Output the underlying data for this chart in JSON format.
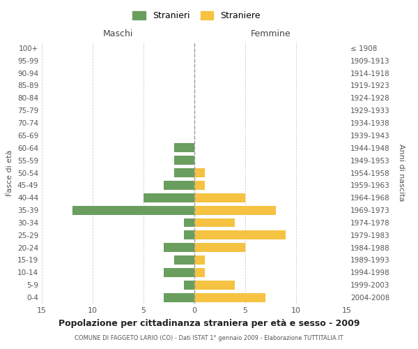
{
  "age_groups": [
    "100+",
    "95-99",
    "90-94",
    "85-89",
    "80-84",
    "75-79",
    "70-74",
    "65-69",
    "60-64",
    "55-59",
    "50-54",
    "45-49",
    "40-44",
    "35-39",
    "30-34",
    "25-29",
    "20-24",
    "15-19",
    "10-14",
    "5-9",
    "0-4"
  ],
  "birth_years": [
    "≤ 1908",
    "1909-1913",
    "1914-1918",
    "1919-1923",
    "1924-1928",
    "1929-1933",
    "1934-1938",
    "1939-1943",
    "1944-1948",
    "1949-1953",
    "1954-1958",
    "1959-1963",
    "1964-1968",
    "1969-1973",
    "1974-1978",
    "1979-1983",
    "1984-1988",
    "1989-1993",
    "1994-1998",
    "1999-2003",
    "2004-2008"
  ],
  "maschi": [
    0,
    0,
    0,
    0,
    0,
    0,
    0,
    0,
    2,
    2,
    2,
    3,
    5,
    12,
    1,
    1,
    3,
    2,
    3,
    1,
    3
  ],
  "femmine": [
    0,
    0,
    0,
    0,
    0,
    0,
    0,
    0,
    0,
    0,
    1,
    1,
    5,
    8,
    4,
    9,
    5,
    1,
    1,
    4,
    7
  ],
  "color_maschi": "#6a9e5f",
  "color_femmine": "#f5c242",
  "title": "Popolazione per cittadinanza straniera per età e sesso - 2009",
  "subtitle": "COMUNE DI FAGGETO LARIO (CO) - Dati ISTAT 1° gennaio 2009 - Elaborazione TUTTITALIA.IT",
  "xlabel_left": "Maschi",
  "xlabel_right": "Femmine",
  "ylabel_left": "Fasce di età",
  "ylabel_right": "Anni di nascita",
  "legend_maschi": "Stranieri",
  "legend_femmine": "Straniere",
  "xlim": 15,
  "background_color": "#ffffff",
  "grid_color": "#d0d0d0"
}
